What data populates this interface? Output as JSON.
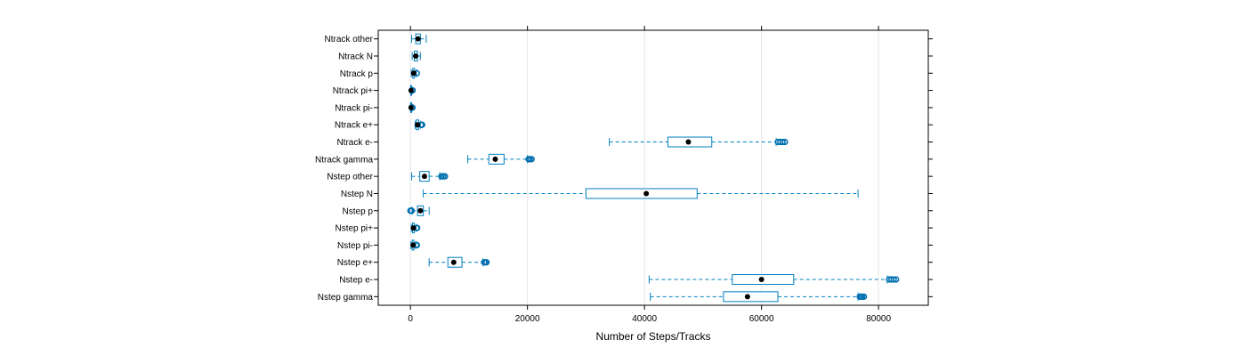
{
  "chart_data": {
    "type": "box",
    "orientation": "horizontal",
    "xlabel": "Number of Steps/Tracks",
    "xlim": [
      -5500,
      88500
    ],
    "xticks": [
      0,
      20000,
      40000,
      60000,
      80000
    ],
    "xtick_labels": [
      "0",
      "20000",
      "40000",
      "60000",
      "80000"
    ],
    "grid": "vertical",
    "colors": {
      "box": "#0080c0",
      "whisker": "#0080c0",
      "median": "#000000",
      "outlier": "#0070b0",
      "grid": "#e6e6e6",
      "frame": "#000000"
    },
    "categories": [
      "Nstep gamma",
      "Nstep e-",
      "Nstep e+",
      "Nstep pi-",
      "Nstep pi+",
      "Nstep p",
      "Nstep N",
      "Nstep other",
      "Ntrack gamma",
      "Ntrack e-",
      "Ntrack e+",
      "Ntrack pi-",
      "Ntrack pi+",
      "Ntrack p",
      "Ntrack N",
      "Ntrack other"
    ],
    "boxes": [
      {
        "name": "Nstep gamma",
        "whisker_low": 41000,
        "q1": 53500,
        "median": 57600,
        "q3": 62800,
        "whisker_high": 76500,
        "outliers": [
          76800,
          77000,
          77200,
          77500
        ]
      },
      {
        "name": "Nstep e-",
        "whisker_low": 40800,
        "q1": 55000,
        "median": 60000,
        "q3": 65500,
        "whisker_high": 81500,
        "outliers": [
          81800,
          82200,
          82600,
          83000
        ]
      },
      {
        "name": "Nstep e+",
        "whisker_low": 3200,
        "q1": 6400,
        "median": 7400,
        "q3": 8800,
        "whisker_high": 12400,
        "outliers": [
          12600,
          12800,
          13000
        ]
      },
      {
        "name": "Nstep pi-",
        "whisker_low": 100,
        "q1": 300,
        "median": 450,
        "q3": 600,
        "whisker_high": 900,
        "outliers": [
          1000,
          1100
        ]
      },
      {
        "name": "Nstep pi+",
        "whisker_low": 150,
        "q1": 350,
        "median": 500,
        "q3": 650,
        "whisker_high": 950,
        "outliers": [
          1050,
          1150
        ]
      },
      {
        "name": "Nstep p",
        "whisker_low": 300,
        "q1": 1200,
        "median": 1700,
        "q3": 2200,
        "whisker_high": 3200,
        "outliers": [
          0,
          100,
          200
        ]
      },
      {
        "name": "Nstep N",
        "whisker_low": 2200,
        "q1": 30000,
        "median": 40300,
        "q3": 49000,
        "whisker_high": 76500,
        "outliers": []
      },
      {
        "name": "Nstep other",
        "whisker_low": 200,
        "q1": 1600,
        "median": 2400,
        "q3": 3200,
        "whisker_high": 5000,
        "outliers": [
          5300,
          5600,
          5900
        ]
      },
      {
        "name": "Ntrack gamma",
        "whisker_low": 9800,
        "q1": 13400,
        "median": 14500,
        "q3": 16000,
        "whisker_high": 20000,
        "outliers": [
          20200,
          20400,
          20700
        ]
      },
      {
        "name": "Ntrack e-",
        "whisker_low": 34000,
        "q1": 44000,
        "median": 47500,
        "q3": 51500,
        "whisker_high": 62500,
        "outliers": [
          62800,
          63200,
          63600,
          64000
        ]
      },
      {
        "name": "Ntrack e+",
        "whisker_low": 800,
        "q1": 1000,
        "median": 1200,
        "q3": 1400,
        "whisker_high": 1700,
        "outliers": [
          1800,
          1900,
          2000
        ]
      },
      {
        "name": "Ntrack pi-",
        "whisker_low": 0,
        "q1": 50,
        "median": 100,
        "q3": 150,
        "whisker_high": 250,
        "outliers": [
          300,
          350
        ]
      },
      {
        "name": "Ntrack pi+",
        "whisker_low": 0,
        "q1": 60,
        "median": 110,
        "q3": 170,
        "whisker_high": 270,
        "outliers": [
          320,
          380
        ]
      },
      {
        "name": "Ntrack p",
        "whisker_low": 150,
        "q1": 400,
        "median": 550,
        "q3": 700,
        "whisker_high": 1000,
        "outliers": [
          1100
        ]
      },
      {
        "name": "Ntrack N",
        "whisker_low": 300,
        "q1": 650,
        "median": 900,
        "q3": 1200,
        "whisker_high": 1700,
        "outliers": []
      },
      {
        "name": "Ntrack other",
        "whisker_low": 200,
        "q1": 900,
        "median": 1300,
        "q3": 1700,
        "whisker_high": 2700,
        "outliers": []
      }
    ]
  }
}
